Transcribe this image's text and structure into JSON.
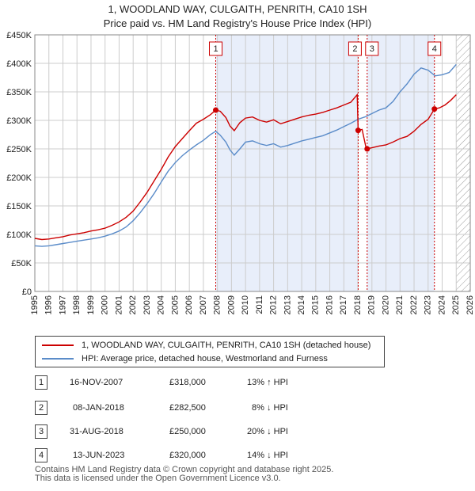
{
  "title_line1": "1, WOODLAND WAY, CULGAITH, PENRITH, CA10 1SH",
  "title_line2": "Price paid vs. HM Land Registry's House Price Index (HPI)",
  "colors": {
    "property": "#cc0000",
    "hpi": "#5b8cc9",
    "shade": "#e8eefa",
    "grid": "#cccccc"
  },
  "chart_data": {
    "type": "line",
    "title": "Price paid vs. HM Land Registry's House Price Index (HPI)",
    "xlim": [
      1995,
      2026
    ],
    "ylim": [
      0,
      450000
    ],
    "x_ticks": [
      "1995",
      "1996",
      "1997",
      "1998",
      "1999",
      "2000",
      "2001",
      "2002",
      "2003",
      "2004",
      "2005",
      "2006",
      "2007",
      "2008",
      "2009",
      "2010",
      "2011",
      "2012",
      "2013",
      "2014",
      "2015",
      "2016",
      "2017",
      "2018",
      "2019",
      "2020",
      "2021",
      "2022",
      "2023",
      "2024",
      "2025",
      "2026"
    ],
    "y_ticks": [
      {
        "value": 0,
        "label": "£0"
      },
      {
        "value": 50000,
        "label": "£50K"
      },
      {
        "value": 100000,
        "label": "£100K"
      },
      {
        "value": 150000,
        "label": "£150K"
      },
      {
        "value": 200000,
        "label": "£200K"
      },
      {
        "value": 250000,
        "label": "£250K"
      },
      {
        "value": 300000,
        "label": "£300K"
      },
      {
        "value": 350000,
        "label": "£350K"
      },
      {
        "value": 400000,
        "label": "£400K"
      },
      {
        "value": 450000,
        "label": "£450K"
      }
    ],
    "series": [
      {
        "name": "1, WOODLAND WAY, CULGAITH, PENRITH, CA10 1SH (detached house)",
        "color": "#cc0000",
        "points": [
          [
            1995.0,
            93000
          ],
          [
            1995.5,
            91000
          ],
          [
            1996.0,
            92000
          ],
          [
            1996.5,
            94000
          ],
          [
            1997.0,
            96000
          ],
          [
            1997.5,
            99000
          ],
          [
            1998.0,
            101000
          ],
          [
            1998.5,
            103000
          ],
          [
            1999.0,
            106000
          ],
          [
            1999.5,
            108000
          ],
          [
            2000.0,
            111000
          ],
          [
            2000.5,
            116000
          ],
          [
            2001.0,
            122000
          ],
          [
            2001.5,
            130000
          ],
          [
            2002.0,
            141000
          ],
          [
            2002.5,
            157000
          ],
          [
            2003.0,
            174000
          ],
          [
            2003.5,
            194000
          ],
          [
            2004.0,
            214000
          ],
          [
            2004.5,
            236000
          ],
          [
            2005.0,
            254000
          ],
          [
            2005.5,
            268000
          ],
          [
            2006.0,
            282000
          ],
          [
            2006.5,
            295000
          ],
          [
            2007.0,
            302000
          ],
          [
            2007.5,
            310000
          ],
          [
            2007.88,
            318000
          ],
          [
            2008.2,
            316000
          ],
          [
            2008.6,
            305000
          ],
          [
            2008.9,
            290000
          ],
          [
            2009.2,
            282000
          ],
          [
            2009.6,
            296000
          ],
          [
            2010.0,
            304000
          ],
          [
            2010.5,
            306000
          ],
          [
            2011.0,
            300000
          ],
          [
            2011.5,
            297000
          ],
          [
            2012.0,
            301000
          ],
          [
            2012.5,
            294000
          ],
          [
            2013.0,
            298000
          ],
          [
            2013.5,
            302000
          ],
          [
            2014.0,
            306000
          ],
          [
            2014.5,
            309000
          ],
          [
            2015.0,
            311000
          ],
          [
            2015.5,
            314000
          ],
          [
            2016.0,
            318000
          ],
          [
            2016.5,
            322000
          ],
          [
            2017.0,
            327000
          ],
          [
            2017.5,
            332000
          ],
          [
            2017.95,
            345000
          ],
          [
            2018.02,
            282500
          ],
          [
            2018.3,
            284000
          ],
          [
            2018.6,
            250000
          ],
          [
            2019.0,
            252000
          ],
          [
            2019.5,
            255000
          ],
          [
            2020.0,
            257000
          ],
          [
            2020.5,
            262000
          ],
          [
            2021.0,
            268000
          ],
          [
            2021.5,
            272000
          ],
          [
            2022.0,
            281000
          ],
          [
            2022.5,
            293000
          ],
          [
            2023.0,
            302000
          ],
          [
            2023.45,
            320000
          ],
          [
            2023.8,
            322000
          ],
          [
            2024.2,
            327000
          ],
          [
            2024.6,
            335000
          ],
          [
            2025.0,
            345000
          ]
        ]
      },
      {
        "name": "HPI: Average price, detached house, Westmorland and Furness",
        "color": "#5b8cc9",
        "points": [
          [
            1995.0,
            80000
          ],
          [
            1995.5,
            79000
          ],
          [
            1996.0,
            80000
          ],
          [
            1996.5,
            82000
          ],
          [
            1997.0,
            84000
          ],
          [
            1997.5,
            86000
          ],
          [
            1998.0,
            88000
          ],
          [
            1998.5,
            90000
          ],
          [
            1999.0,
            92000
          ],
          [
            1999.5,
            94000
          ],
          [
            2000.0,
            97000
          ],
          [
            2000.5,
            101000
          ],
          [
            2001.0,
            106000
          ],
          [
            2001.5,
            113000
          ],
          [
            2002.0,
            124000
          ],
          [
            2002.5,
            138000
          ],
          [
            2003.0,
            154000
          ],
          [
            2003.5,
            172000
          ],
          [
            2004.0,
            192000
          ],
          [
            2004.5,
            211000
          ],
          [
            2005.0,
            226000
          ],
          [
            2005.5,
            238000
          ],
          [
            2006.0,
            248000
          ],
          [
            2006.5,
            257000
          ],
          [
            2007.0,
            265000
          ],
          [
            2007.5,
            275000
          ],
          [
            2007.88,
            281000
          ],
          [
            2008.2,
            274000
          ],
          [
            2008.6,
            262000
          ],
          [
            2008.9,
            248000
          ],
          [
            2009.2,
            239000
          ],
          [
            2009.6,
            250000
          ],
          [
            2010.0,
            262000
          ],
          [
            2010.5,
            264000
          ],
          [
            2011.0,
            259000
          ],
          [
            2011.5,
            256000
          ],
          [
            2012.0,
            259000
          ],
          [
            2012.5,
            253000
          ],
          [
            2013.0,
            256000
          ],
          [
            2013.5,
            260000
          ],
          [
            2014.0,
            264000
          ],
          [
            2014.5,
            267000
          ],
          [
            2015.0,
            270000
          ],
          [
            2015.5,
            273000
          ],
          [
            2016.0,
            278000
          ],
          [
            2016.5,
            283000
          ],
          [
            2017.0,
            289000
          ],
          [
            2017.5,
            295000
          ],
          [
            2018.0,
            302000
          ],
          [
            2018.5,
            306000
          ],
          [
            2019.0,
            312000
          ],
          [
            2019.5,
            318000
          ],
          [
            2020.0,
            322000
          ],
          [
            2020.5,
            333000
          ],
          [
            2021.0,
            350000
          ],
          [
            2021.5,
            364000
          ],
          [
            2022.0,
            381000
          ],
          [
            2022.5,
            392000
          ],
          [
            2023.0,
            388000
          ],
          [
            2023.5,
            378000
          ],
          [
            2024.0,
            380000
          ],
          [
            2024.5,
            384000
          ],
          [
            2025.0,
            398000
          ]
        ]
      }
    ],
    "sales": [
      {
        "label": "1",
        "date": "16-NOV-2007",
        "x": 2007.88,
        "price": 318000
      },
      {
        "label": "2",
        "date": "08-JAN-2018",
        "x": 2018.02,
        "price": 282500
      },
      {
        "label": "3",
        "date": "31-AUG-2018",
        "x": 2018.66,
        "price": 250000
      },
      {
        "label": "4",
        "date": "13-JUN-2023",
        "x": 2023.45,
        "price": 320000
      }
    ],
    "shaded_ranges": [
      [
        2007.88,
        2018.02
      ],
      [
        2018.66,
        2023.45
      ]
    ],
    "future_hatch_start": 2025.0
  },
  "legend": {
    "property": "1, WOODLAND WAY, CULGAITH, PENRITH, CA10 1SH (detached house)",
    "hpi": "HPI: Average price, detached house, Westmorland and Furness"
  },
  "sales_table": [
    {
      "num": "1",
      "date": "16-NOV-2007",
      "price": "£318,000",
      "hpi": "13% ↑ HPI"
    },
    {
      "num": "2",
      "date": "08-JAN-2018",
      "price": "£282,500",
      "hpi": "8% ↓ HPI"
    },
    {
      "num": "3",
      "date": "31-AUG-2018",
      "price": "£250,000",
      "hpi": "20% ↓ HPI"
    },
    {
      "num": "4",
      "date": "13-JUN-2023",
      "price": "£320,000",
      "hpi": "14% ↓ HPI"
    }
  ],
  "footer_line1": "Contains HM Land Registry data © Crown copyright and database right 2025.",
  "footer_line2": "This data is licensed under the Open Government Licence v3.0."
}
